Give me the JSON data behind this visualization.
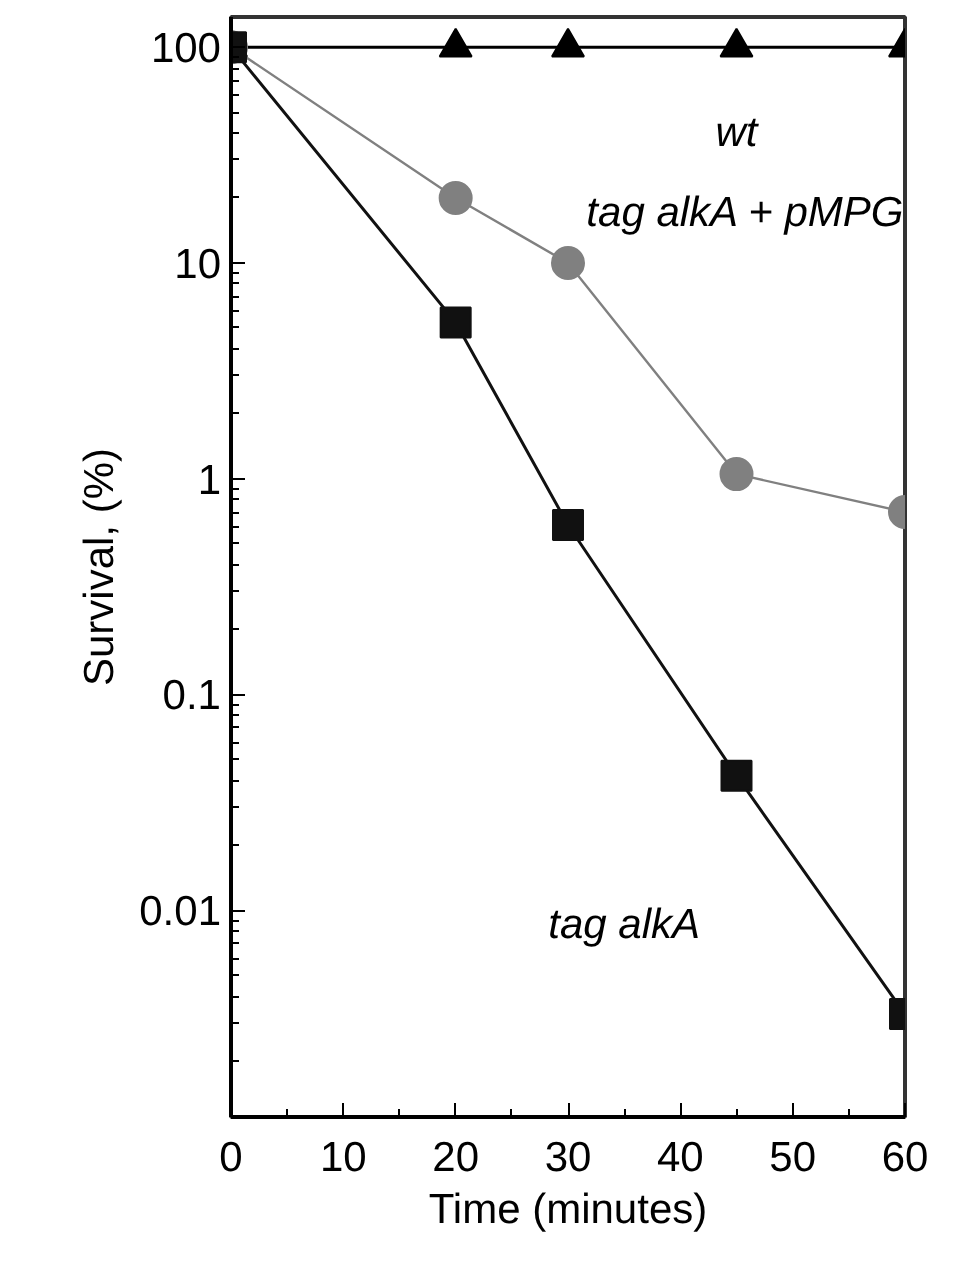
{
  "chart_data": {
    "type": "line",
    "xlabel": "Time (minutes)",
    "ylabel": "Survival, (%)",
    "log": "y",
    "grid": false,
    "xlim": [
      0,
      60
    ],
    "xticks": [
      0,
      10,
      20,
      30,
      40,
      50,
      60
    ],
    "ylim": [
      0.0011,
      138
    ],
    "yticks": [
      0.01,
      0.1,
      1,
      10,
      100
    ],
    "x": [
      0,
      20,
      30,
      45,
      60
    ],
    "series": [
      {
        "name": "wt",
        "color": "#000000",
        "marker": "triangle",
        "values": [
          100,
          100,
          100,
          100,
          100
        ]
      },
      {
        "name": "tag alkA + pMPG",
        "color": "#808080",
        "marker": "circle",
        "values": [
          100,
          20,
          10,
          1.05,
          0.7
        ]
      },
      {
        "name": "tag alkA",
        "color": "#111111",
        "marker": "square",
        "values": [
          100,
          5.3,
          0.61,
          0.042,
          0.0033
        ]
      }
    ]
  }
}
